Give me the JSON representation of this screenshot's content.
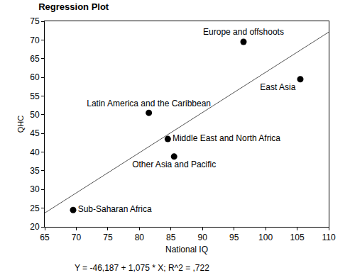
{
  "chart_data": {
    "type": "scatter",
    "title": "Regression Plot",
    "x_label": "National IQ",
    "y_label": "QHC",
    "annotations": [
      "Y = -46,187 + 1,075 * X; R^2 = ,722"
    ],
    "xlim": [
      65,
      110
    ],
    "xticks": [
      65,
      70,
      75,
      80,
      85,
      90,
      95,
      100,
      105,
      110
    ],
    "ylim": [
      20,
      75
    ],
    "yticks": [
      20,
      25,
      30,
      35,
      40,
      45,
      50,
      55,
      60,
      65,
      70,
      75
    ],
    "grid": false,
    "series": [
      {
        "type": "scatter",
        "marker": "circle",
        "color": "#000000",
        "x": [
          69.5,
          81.5,
          84.5,
          85.5,
          96.5,
          105.5
        ],
        "values": [
          24.5,
          50.5,
          43.5,
          38.8,
          69.5,
          59.5
        ],
        "labels": [
          "Sub-Saharan Africa",
          "Latin America and the Caribbean",
          "Middle East and North Africa",
          "Other Asia and Pacific",
          "Europe and offshoots",
          "East Asia"
        ]
      },
      {
        "type": "line",
        "line_style": "solid",
        "color": "#555555",
        "x": [
          65,
          110
        ],
        "values": [
          23.7,
          72.1
        ]
      }
    ]
  }
}
